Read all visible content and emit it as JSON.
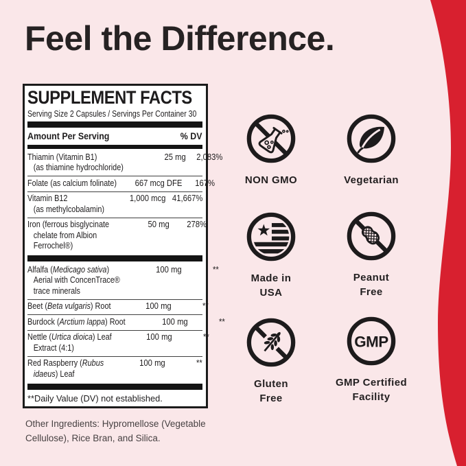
{
  "page": {
    "headline": "Feel the Difference.",
    "background_color": "#FAE7E9",
    "accent_red": "#D8202F",
    "text_color": "#262223"
  },
  "supplement_facts": {
    "title": "SUPPLEMENT FACTS",
    "serving_line": "Serving Size 2 Capsules / Servings Per Container 30",
    "header": {
      "amount_label": "Amount Per Serving",
      "dv_label": "% DV"
    },
    "rows": [
      {
        "name_lines": [
          {
            "segs": [
              {
                "t": "Thiamin (Vitamin B1)"
              }
            ]
          },
          {
            "ind": true,
            "segs": [
              {
                "t": "(as thiamine hydrochloride)"
              }
            ]
          }
        ],
        "amount": "25 mg",
        "dv": "2,083%"
      },
      {
        "name_lines": [
          {
            "segs": [
              {
                "t": "Folate (as calcium folinate)"
              }
            ]
          }
        ],
        "amount": "667 mcg DFE",
        "dv": "167%"
      },
      {
        "name_lines": [
          {
            "segs": [
              {
                "t": "Vitamin B12"
              }
            ]
          },
          {
            "ind": true,
            "segs": [
              {
                "t": "(as methylcobalamin)"
              }
            ]
          }
        ],
        "amount": "1,000 mcg",
        "dv": "41,667%"
      },
      {
        "name_lines": [
          {
            "segs": [
              {
                "t": "Iron (ferrous bisglycinate"
              }
            ]
          },
          {
            "ind": true,
            "segs": [
              {
                "t": "chelate from Albion"
              }
            ]
          },
          {
            "ind": true,
            "segs": [
              {
                "t": "Ferrochel®)"
              }
            ]
          }
        ],
        "amount": "50 mg",
        "dv": "278%"
      },
      {
        "thick_bar_before": true,
        "name_lines": [
          {
            "segs": [
              {
                "t": "Alfalfa ("
              },
              {
                "t": "Medicago sativa",
                "i": true
              },
              {
                "t": ")"
              }
            ]
          },
          {
            "ind": true,
            "segs": [
              {
                "t": "Aerial with ConcenTrace®"
              }
            ]
          },
          {
            "ind": true,
            "segs": [
              {
                "t": "trace minerals"
              }
            ]
          }
        ],
        "amount": "100 mg",
        "dv": "**"
      },
      {
        "name_lines": [
          {
            "segs": [
              {
                "t": "Beet ("
              },
              {
                "t": "Beta vulgaris",
                "i": true
              },
              {
                "t": ") Root"
              }
            ]
          }
        ],
        "amount": "100 mg",
        "dv": "**"
      },
      {
        "name_lines": [
          {
            "segs": [
              {
                "t": "Burdock ("
              },
              {
                "t": "Arctium lappa",
                "i": true
              },
              {
                "t": ") Root"
              }
            ]
          }
        ],
        "amount": "100 mg",
        "dv": "**"
      },
      {
        "name_lines": [
          {
            "segs": [
              {
                "t": "Nettle ("
              },
              {
                "t": "Urtica dioica",
                "i": true
              },
              {
                "t": ") Leaf"
              }
            ]
          },
          {
            "ind": true,
            "segs": [
              {
                "t": "Extract (4:1)"
              }
            ]
          }
        ],
        "amount": "100 mg",
        "dv": "**"
      },
      {
        "name_lines": [
          {
            "segs": [
              {
                "t": "Red Raspberry ("
              },
              {
                "t": "Rubus",
                "i": true
              }
            ]
          },
          {
            "ind": true,
            "segs": [
              {
                "t": "idaeus",
                "i": true
              },
              {
                "t": ") Leaf"
              }
            ]
          }
        ],
        "amount": "100 mg",
        "dv": "**"
      }
    ],
    "footnote": "**Daily Value (DV) not established."
  },
  "other_ingredients": "Other Ingredients: Hypromellose (Vegetable Cellulose), Rice Bran, and Silica.",
  "badges": [
    {
      "icon": "no-gmo-flask-icon",
      "label_lines": [
        "NON GMO"
      ]
    },
    {
      "icon": "leaf-icon",
      "label_lines": [
        "Vegetarian"
      ]
    },
    {
      "icon": "usa-flag-icon",
      "label_lines": [
        "Made in",
        "USA"
      ]
    },
    {
      "icon": "no-peanut-icon",
      "label_lines": [
        "Peanut",
        "Free"
      ]
    },
    {
      "icon": "no-wheat-icon",
      "label_lines": [
        "Gluten",
        "Free"
      ]
    },
    {
      "icon": "gmp-icon",
      "label_lines": [
        "GMP Certified",
        "Facility"
      ],
      "icon_text": "GMP"
    }
  ]
}
